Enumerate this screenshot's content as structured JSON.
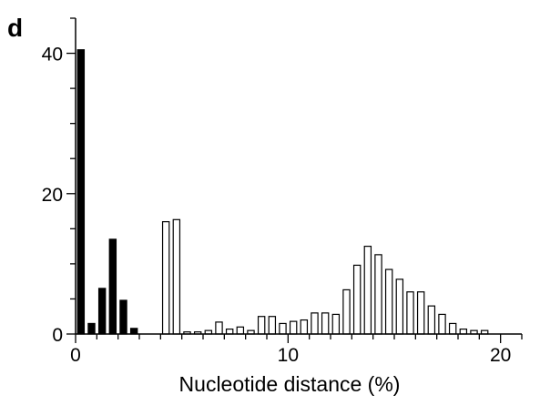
{
  "chart_data": {
    "type": "bar",
    "panel_label": "d",
    "title": "",
    "xlabel": "Nucleotide distance (%)",
    "ylabel": "",
    "xlim": [
      0,
      21
    ],
    "ylim": [
      0,
      45
    ],
    "x_ticks": [
      0,
      10,
      20
    ],
    "y_ticks": [
      0,
      20,
      40
    ],
    "grid": false,
    "bin_width": 0.5,
    "series": [
      {
        "fill": "#000000",
        "points": [
          {
            "x": 0.0,
            "y": 40.5
          },
          {
            "x": 0.5,
            "y": 1.5
          },
          {
            "x": 1.0,
            "y": 6.5
          },
          {
            "x": 1.5,
            "y": 13.5
          },
          {
            "x": 2.0,
            "y": 4.8
          },
          {
            "x": 2.5,
            "y": 0.8
          }
        ]
      },
      {
        "fill": "#ffffff",
        "points": [
          {
            "x": 4.0,
            "y": 16.0
          },
          {
            "x": 4.5,
            "y": 16.3
          },
          {
            "x": 5.0,
            "y": 0.3
          },
          {
            "x": 5.5,
            "y": 0.3
          },
          {
            "x": 6.0,
            "y": 0.5
          },
          {
            "x": 6.5,
            "y": 1.7
          },
          {
            "x": 7.0,
            "y": 0.7
          },
          {
            "x": 7.5,
            "y": 1.0
          },
          {
            "x": 8.0,
            "y": 0.5
          },
          {
            "x": 8.5,
            "y": 2.5
          },
          {
            "x": 9.0,
            "y": 2.5
          },
          {
            "x": 9.5,
            "y": 1.5
          },
          {
            "x": 10.0,
            "y": 1.8
          },
          {
            "x": 10.5,
            "y": 2.0
          },
          {
            "x": 11.0,
            "y": 3.0
          },
          {
            "x": 11.5,
            "y": 3.0
          },
          {
            "x": 12.0,
            "y": 2.8
          },
          {
            "x": 12.5,
            "y": 6.3
          },
          {
            "x": 13.0,
            "y": 9.8
          },
          {
            "x": 13.5,
            "y": 12.5
          },
          {
            "x": 14.0,
            "y": 11.3
          },
          {
            "x": 14.5,
            "y": 9.2
          },
          {
            "x": 15.0,
            "y": 7.8
          },
          {
            "x": 15.5,
            "y": 6.0
          },
          {
            "x": 16.0,
            "y": 6.0
          },
          {
            "x": 16.5,
            "y": 4.0
          },
          {
            "x": 17.0,
            "y": 2.8
          },
          {
            "x": 17.5,
            "y": 1.5
          },
          {
            "x": 18.0,
            "y": 0.7
          },
          {
            "x": 18.5,
            "y": 0.5
          },
          {
            "x": 19.0,
            "y": 0.5
          }
        ]
      }
    ]
  }
}
